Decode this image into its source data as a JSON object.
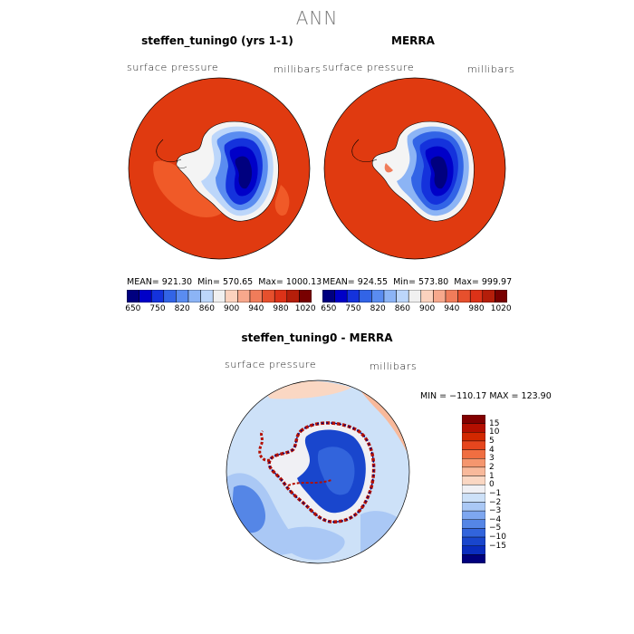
{
  "page": {
    "title": "ANN"
  },
  "colors": {
    "abs_scale": [
      "#00007f",
      "#0000c8",
      "#1432dc",
      "#3264e6",
      "#5a8cf0",
      "#8cb4f5",
      "#bcd6fa",
      "#f0f0f0",
      "#fbd2be",
      "#f7a88c",
      "#f07c5a",
      "#e6502d",
      "#dc3218",
      "#b41e0a",
      "#780000"
    ],
    "diff_scale": [
      "#820000",
      "#b40f00",
      "#d22800",
      "#e6461e",
      "#f06e41",
      "#f5966e",
      "#f8b99b",
      "#fad7c3",
      "#f0f0f4",
      "#cde1f8",
      "#aac8f5",
      "#7ea7f0",
      "#5586e6",
      "#3264dc",
      "#1946cd",
      "#0a2dbe",
      "#00007d"
    ]
  },
  "panels": [
    {
      "id": "model",
      "title": "steffen_tuning0 (yrs 1-1)",
      "variable": "surface pressure",
      "units": "millibars",
      "stats": {
        "mean_label": "MEAN=",
        "mean": "921.30",
        "min_label": "Min=",
        "min": "570.65",
        "max_label": "Max=",
        "max": "1000.13"
      }
    },
    {
      "id": "obs",
      "title": "MERRA",
      "variable": "surface pressure",
      "units": "millibars",
      "stats": {
        "mean_label": "MEAN=",
        "mean": "924.55",
        "min_label": "Min=",
        "min": "573.80",
        "max_label": "Max=",
        "max": "999.97"
      }
    }
  ],
  "colorbar_abs": {
    "labels": [
      "650",
      "750",
      "820",
      "860",
      "900",
      "940",
      "980",
      "1020"
    ]
  },
  "diff_panel": {
    "title": "steffen_tuning0 - MERRA",
    "variable": "surface pressure",
    "units": "millibars",
    "minmax": "MIN = −110.17  MAX = 123.90",
    "colorbar_labels": [
      "15",
      "10",
      "5",
      "4",
      "3",
      "2",
      "1",
      "0",
      "−1",
      "−2",
      "−3",
      "−4",
      "−5",
      "−10",
      "−15"
    ]
  }
}
